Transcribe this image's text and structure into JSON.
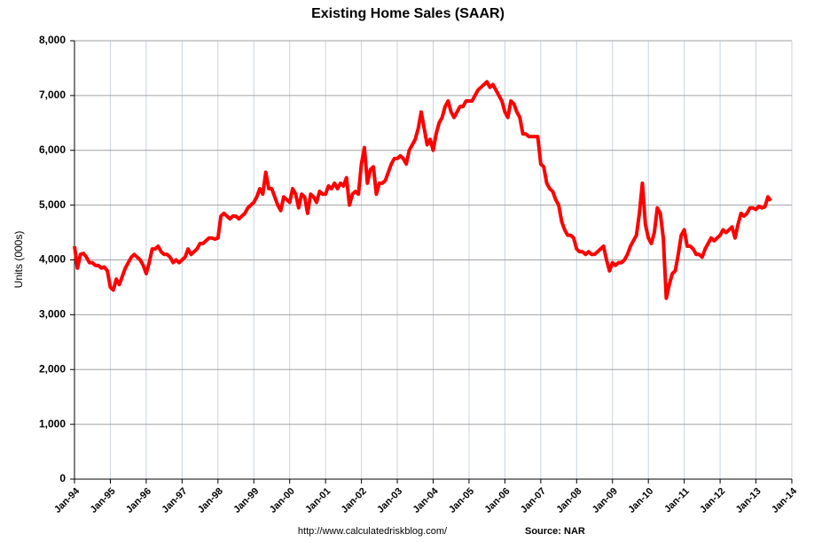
{
  "chart_data": {
    "type": "line",
    "title": "Existing Home Sales (SAAR)",
    "y_label": "Units (000s)",
    "footer_url": "http://www.calculatedriskblog.com/",
    "footer_source": "Source: NAR",
    "categories": [
      "Jan-94",
      null,
      null,
      null,
      null,
      null,
      null,
      null,
      null,
      null,
      null,
      null,
      "Jan-95",
      null,
      null,
      null,
      null,
      null,
      null,
      null,
      null,
      null,
      null,
      null,
      "Jan-96",
      null,
      null,
      null,
      null,
      null,
      null,
      null,
      null,
      null,
      null,
      null,
      "Jan-97",
      null,
      null,
      null,
      null,
      null,
      null,
      null,
      null,
      null,
      null,
      null,
      "Jan-98",
      null,
      null,
      null,
      null,
      null,
      null,
      null,
      null,
      null,
      null,
      null,
      "Jan-99",
      null,
      null,
      null,
      null,
      null,
      null,
      null,
      null,
      null,
      null,
      null,
      "Jan-00",
      null,
      null,
      null,
      null,
      null,
      null,
      null,
      null,
      null,
      null,
      null,
      "Jan-01",
      null,
      null,
      null,
      null,
      null,
      null,
      null,
      null,
      null,
      null,
      null,
      "Jan-02",
      null,
      null,
      null,
      null,
      null,
      null,
      null,
      null,
      null,
      null,
      null,
      "Jan-03",
      null,
      null,
      null,
      null,
      null,
      null,
      null,
      null,
      null,
      null,
      null,
      "Jan-04",
      null,
      null,
      null,
      null,
      null,
      null,
      null,
      null,
      null,
      null,
      null,
      "Jan-05",
      null,
      null,
      null,
      null,
      null,
      null,
      null,
      null,
      null,
      null,
      null,
      "Jan-06",
      null,
      null,
      null,
      null,
      null,
      null,
      null,
      null,
      null,
      null,
      null,
      "Jan-07",
      null,
      null,
      null,
      null,
      null,
      null,
      null,
      null,
      null,
      null,
      null,
      "Jan-08",
      null,
      null,
      null,
      null,
      null,
      null,
      null,
      null,
      null,
      null,
      null,
      "Jan-09",
      null,
      null,
      null,
      null,
      null,
      null,
      null,
      null,
      null,
      null,
      null,
      "Jan-10",
      null,
      null,
      null,
      null,
      null,
      null,
      null,
      null,
      null,
      null,
      null,
      "Jan-11",
      null,
      null,
      null,
      null,
      null,
      null,
      null,
      null,
      null,
      null,
      null,
      "Jan-12",
      null,
      null,
      null,
      null,
      null,
      null,
      null,
      null,
      null,
      null,
      null,
      "Jan-13",
      null,
      null,
      null,
      null,
      null,
      null,
      null,
      null,
      null,
      null,
      null,
      "Jan-14"
    ],
    "series": [
      {
        "name": "Existing Home Sales",
        "color": "#ff0000",
        "values": [
          4250,
          3850,
          4100,
          4120,
          4050,
          3950,
          3950,
          3900,
          3900,
          3850,
          3870,
          3800,
          3500,
          3450,
          3650,
          3550,
          3700,
          3850,
          3950,
          4050,
          4100,
          4050,
          4000,
          3900,
          3750,
          3950,
          4200,
          4200,
          4250,
          4150,
          4100,
          4100,
          4050,
          3950,
          4000,
          3950,
          4000,
          4050,
          4200,
          4100,
          4150,
          4200,
          4300,
          4300,
          4350,
          4400,
          4400,
          4380,
          4400,
          4800,
          4850,
          4800,
          4750,
          4800,
          4800,
          4750,
          4800,
          4850,
          4950,
          5000,
          5050,
          5150,
          5300,
          5200,
          5600,
          5300,
          5300,
          5150,
          5000,
          4900,
          5150,
          5100,
          5050,
          5300,
          5200,
          4950,
          5200,
          5150,
          4850,
          5200,
          5150,
          5050,
          5250,
          5200,
          5200,
          5350,
          5300,
          5400,
          5300,
          5400,
          5350,
          5500,
          5000,
          5200,
          5250,
          5200,
          5750,
          6050,
          5400,
          5650,
          5700,
          5200,
          5400,
          5400,
          5450,
          5600,
          5750,
          5850,
          5850,
          5900,
          5850,
          5750,
          6000,
          6100,
          6200,
          6400,
          6700,
          6400,
          6100,
          6200,
          6000,
          6300,
          6500,
          6600,
          6800,
          6900,
          6700,
          6600,
          6700,
          6800,
          6800,
          6900,
          6900,
          6900,
          7000,
          7100,
          7150,
          7200,
          7250,
          7150,
          7200,
          7100,
          7000,
          6900,
          6700,
          6600,
          6900,
          6850,
          6700,
          6600,
          6300,
          6300,
          6250,
          6250,
          6250,
          6250,
          5750,
          5700,
          5400,
          5300,
          5250,
          5100,
          5000,
          4700,
          4550,
          4450,
          4450,
          4400,
          4200,
          4150,
          4150,
          4100,
          4150,
          4100,
          4100,
          4150,
          4200,
          4250,
          4000,
          3800,
          3950,
          3900,
          3950,
          3950,
          4000,
          4100,
          4250,
          4350,
          4450,
          4850,
          5400,
          4650,
          4400,
          4300,
          4500,
          4950,
          4850,
          4400,
          3300,
          3550,
          3750,
          3800,
          4100,
          4450,
          4550,
          4250,
          4250,
          4200,
          4100,
          4100,
          4050,
          4200,
          4300,
          4400,
          4350,
          4400,
          4450,
          4550,
          4500,
          4550,
          4600,
          4400,
          4650,
          4850,
          4800,
          4850,
          4950,
          4950,
          4920,
          4980,
          4950,
          4970,
          5150,
          5080,
          null,
          null,
          null,
          null,
          null,
          null,
          null
        ]
      }
    ],
    "ylim": [
      0,
      8000
    ],
    "yticks": [
      0,
      {
        "value": 1000,
        "label": "1,000"
      },
      {
        "value": 2000,
        "label": "2,000"
      },
      {
        "value": 3000,
        "label": "3,000"
      },
      {
        "value": 4000,
        "label": "4,000"
      },
      {
        "value": 5000,
        "label": "5,000"
      },
      {
        "value": 6000,
        "label": "6,000"
      },
      {
        "value": 7000,
        "label": "7,000"
      },
      {
        "value": 8000,
        "label": "8,000"
      }
    ],
    "grid": true
  }
}
